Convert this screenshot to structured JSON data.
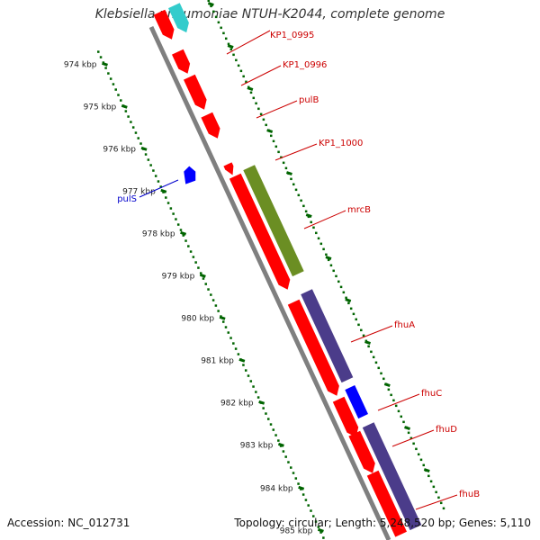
{
  "title": "Klebsiella pneumoniae NTUH-K2044, complete genome",
  "footer": {
    "accession": "Accession: NC_012731",
    "topology": "Topology: circular; Length: 5,248,520 bp; Genes: 5,110"
  },
  "ticks": [
    "974 kbp",
    "975 kbp",
    "976 kbp",
    "977 kbp",
    "978 kbp",
    "979 kbp",
    "980 kbp",
    "981 kbp",
    "982 kbp",
    "983 kbp",
    "984 kbp",
    "985 kbp"
  ],
  "colors": {
    "red": "#ff0000",
    "cyan": "#33cccc",
    "blue": "#0000ff",
    "olive": "#6b8e23",
    "purple": "#4b3c8a",
    "backbone": "#7f7f7f",
    "tick": "#006400",
    "labelRed": "#cc0000",
    "labelBlue": "#0000cc"
  },
  "gene_labels": [
    {
      "text": "KP1_0995",
      "color": "red"
    },
    {
      "text": "KP1_0996",
      "color": "red"
    },
    {
      "text": "pulB",
      "color": "red"
    },
    {
      "text": "KP1_1000",
      "color": "red"
    },
    {
      "text": "mrcB",
      "color": "red"
    },
    {
      "text": "fhuA",
      "color": "red"
    },
    {
      "text": "fhuC",
      "color": "red"
    },
    {
      "text": "fhuD",
      "color": "red"
    },
    {
      "text": "fhuB",
      "color": "red"
    },
    {
      "text": "pulS",
      "color": "blue"
    }
  ]
}
